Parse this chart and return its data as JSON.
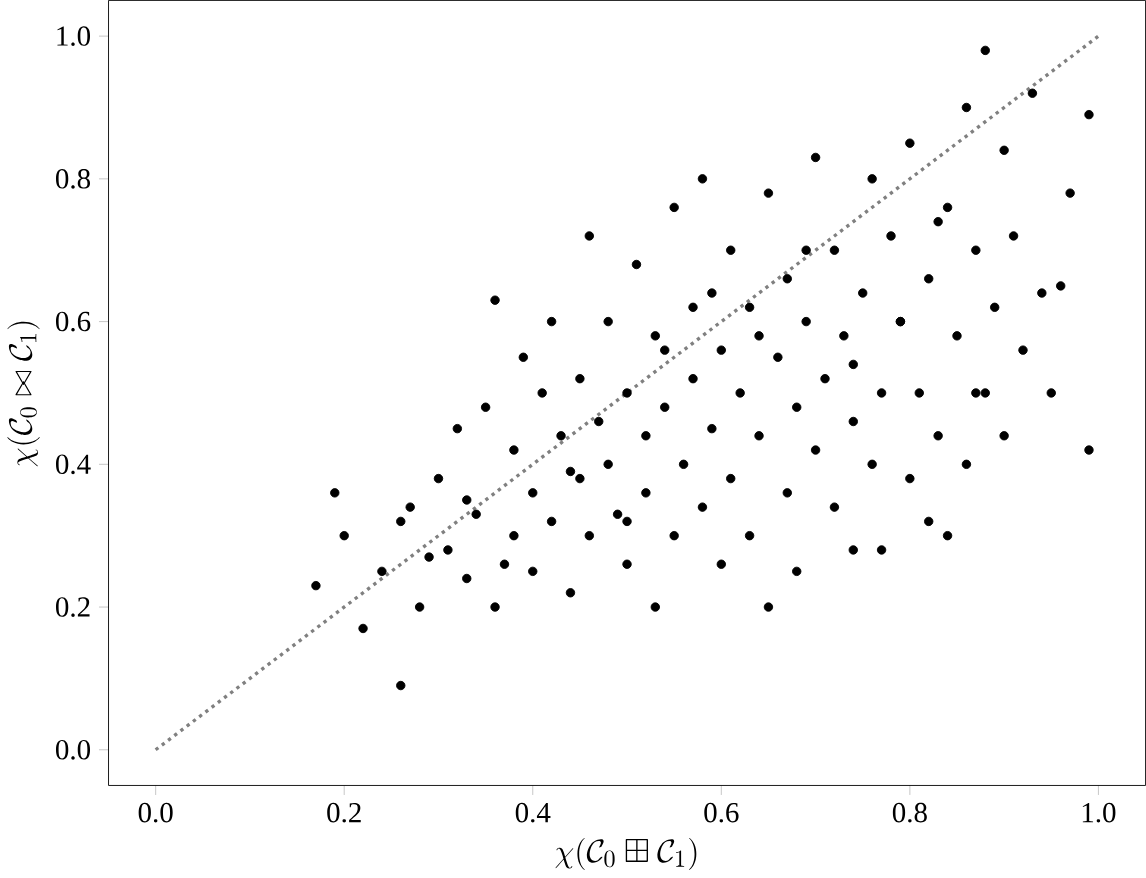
{
  "chart_data": {
    "type": "scatter",
    "xlabel": "\\chi(\\mathcal{C}_0 \\boxplus \\mathcal{C}_1)",
    "ylabel": "\\chi(\\mathcal{C}_0 \\bowtie \\mathcal{C}_1)",
    "xlim": [
      -0.05,
      1.05
    ],
    "ylim": [
      -0.05,
      1.05
    ],
    "xticks": [
      {
        "value": 0,
        "label": "0.0"
      },
      0.2,
      0.4,
      0.6,
      0.8,
      {
        "value": 1,
        "label": "1.0"
      }
    ],
    "yticks": [
      {
        "value": 0,
        "label": "0.0"
      },
      0.2,
      0.4,
      0.6,
      0.8,
      {
        "value": 1,
        "label": "1.0"
      }
    ],
    "grid": false,
    "series": [
      {
        "color": "#000000",
        "marker": "circle",
        "x": [
          0.17,
          0.19,
          0.2,
          0.22,
          0.24,
          0.26,
          0.27,
          0.28,
          0.3,
          0.31,
          0.32,
          0.33,
          0.34,
          0.35,
          0.36,
          0.36,
          0.38,
          0.38,
          0.39,
          0.4,
          0.4,
          0.41,
          0.42,
          0.42,
          0.43,
          0.44,
          0.45,
          0.45,
          0.46,
          0.46,
          0.47,
          0.48,
          0.48,
          0.49,
          0.5,
          0.5,
          0.51,
          0.52,
          0.52,
          0.53,
          0.53,
          0.54,
          0.55,
          0.55,
          0.56,
          0.57,
          0.57,
          0.58,
          0.58,
          0.59,
          0.6,
          0.6,
          0.61,
          0.61,
          0.62,
          0.63,
          0.63,
          0.64,
          0.65,
          0.65,
          0.66,
          0.67,
          0.67,
          0.68,
          0.68,
          0.69,
          0.7,
          0.7,
          0.71,
          0.72,
          0.72,
          0.73,
          0.74,
          0.74,
          0.75,
          0.76,
          0.76,
          0.77,
          0.77,
          0.78,
          0.79,
          0.8,
          0.8,
          0.81,
          0.82,
          0.82,
          0.83,
          0.84,
          0.84,
          0.85,
          0.86,
          0.86,
          0.87,
          0.88,
          0.88,
          0.89,
          0.9,
          0.9,
          0.91,
          0.92,
          0.93,
          0.94,
          0.95,
          0.96,
          0.97,
          0.99,
          0.99,
          0.26,
          0.29,
          0.33,
          0.37,
          0.44,
          0.5,
          0.54,
          0.59,
          0.64,
          0.69,
          0.74,
          0.79,
          0.83,
          0.87
        ],
        "values": [
          0.23,
          0.36,
          0.3,
          0.17,
          0.25,
          0.09,
          0.34,
          0.2,
          0.38,
          0.28,
          0.45,
          0.24,
          0.33,
          0.48,
          0.63,
          0.2,
          0.3,
          0.42,
          0.55,
          0.25,
          0.36,
          0.5,
          0.32,
          0.6,
          0.44,
          0.22,
          0.38,
          0.52,
          0.72,
          0.3,
          0.46,
          0.6,
          0.4,
          0.33,
          0.5,
          0.26,
          0.68,
          0.44,
          0.36,
          0.2,
          0.58,
          0.48,
          0.3,
          0.76,
          0.4,
          0.62,
          0.52,
          0.34,
          0.8,
          0.45,
          0.56,
          0.26,
          0.38,
          0.7,
          0.5,
          0.62,
          0.3,
          0.44,
          0.2,
          0.78,
          0.55,
          0.36,
          0.66,
          0.25,
          0.48,
          0.6,
          0.42,
          0.83,
          0.52,
          0.34,
          0.7,
          0.58,
          0.46,
          0.28,
          0.64,
          0.4,
          0.8,
          0.5,
          0.28,
          0.72,
          0.6,
          0.38,
          0.85,
          0.5,
          0.32,
          0.66,
          0.44,
          0.3,
          0.76,
          0.58,
          0.4,
          0.9,
          0.7,
          0.5,
          0.98,
          0.62,
          0.44,
          0.84,
          0.72,
          0.56,
          0.92,
          0.64,
          0.5,
          0.65,
          0.78,
          0.89,
          0.42,
          0.32,
          0.27,
          0.35,
          0.26,
          0.39,
          0.32,
          0.56,
          0.64,
          0.58,
          0.7,
          0.54,
          0.6,
          0.74,
          0.5
        ]
      },
      {
        "type": "line",
        "color": "#808080",
        "line_style": "dotted",
        "marker": "none",
        "x": [
          0,
          1
        ],
        "values": [
          0,
          1
        ]
      }
    ]
  }
}
